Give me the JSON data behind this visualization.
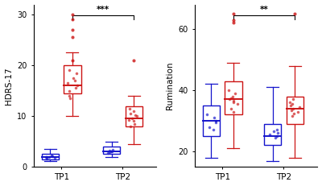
{
  "left_ylabel": "HDRS-17",
  "right_ylabel": "Rumination",
  "left_ylim": [
    0,
    32
  ],
  "right_ylim": [
    15,
    68
  ],
  "left_yticks": [
    0,
    10,
    20,
    30
  ],
  "right_yticks": [
    20,
    40,
    60
  ],
  "xtick_labels": [
    "TP1",
    "TP2"
  ],
  "blue_color": "#1414cc",
  "red_color": "#cc1414",
  "sig_left": "***",
  "sig_right": "**",
  "background_color": "#ffffff",
  "left_boxes": {
    "TP1_blue": {
      "median": 2.0,
      "q1": 1.5,
      "q3": 2.5,
      "whislo": 1.2,
      "whishi": 3.5
    },
    "TP1_red": {
      "median": 16.0,
      "q1": 14.5,
      "q3": 20.0,
      "whislo": 10.0,
      "whishi": 22.5
    },
    "TP2_blue": {
      "median": 3.0,
      "q1": 2.5,
      "q3": 4.0,
      "whislo": 2.0,
      "whishi": 5.0
    },
    "TP2_red": {
      "median": 9.5,
      "q1": 8.0,
      "q3": 12.0,
      "whislo": 4.5,
      "whishi": 14.0
    }
  },
  "right_boxes": {
    "TP1_blue": {
      "median": 30.0,
      "q1": 25.0,
      "q3": 35.0,
      "whislo": 18.0,
      "whishi": 42.0
    },
    "TP1_red": {
      "median": 37.0,
      "q1": 32.0,
      "q3": 43.0,
      "whislo": 21.0,
      "whishi": 49.0
    },
    "TP2_blue": {
      "median": 25.0,
      "q1": 22.0,
      "q3": 29.0,
      "whislo": 17.0,
      "whishi": 41.0
    },
    "TP2_red": {
      "median": 34.0,
      "q1": 29.0,
      "q3": 38.0,
      "whislo": 18.0,
      "whishi": 48.0
    }
  },
  "left_fliers": {
    "TP1_blue": [],
    "TP1_red": [
      30.0,
      29.0,
      27.0,
      25.5,
      21.0
    ],
    "TP2_blue": [],
    "TP2_red": [
      21.0
    ]
  },
  "right_fliers": {
    "TP1_blue": [],
    "TP1_red": [
      63.0,
      62.0,
      65.0
    ],
    "TP2_blue": [],
    "TP2_red": [
      65.0
    ]
  },
  "left_dots": {
    "TP1_blue": [
      2.0,
      1.8,
      2.1,
      2.3,
      1.6,
      2.0,
      1.9
    ],
    "TP1_red": [
      18.5,
      17.5,
      17.0,
      16.5,
      16.0,
      15.5,
      15.0,
      19.0,
      14.0,
      13.5
    ],
    "TP2_blue": [
      3.0,
      3.1,
      2.9,
      3.3,
      2.7,
      3.2
    ],
    "TP2_red": [
      9.5,
      9.0,
      10.0,
      10.5,
      11.0,
      8.5,
      9.2,
      10.2,
      8.0,
      11.5
    ]
  },
  "right_dots": {
    "TP1_blue": [
      30.0,
      29.5,
      31.0,
      28.0,
      32.0,
      27.0
    ],
    "TP1_red": [
      38.0,
      37.0,
      36.5,
      40.0,
      35.5,
      34.0,
      39.0,
      37.5,
      33.0,
      36.0
    ],
    "TP2_blue": [
      25.5,
      26.0,
      24.5,
      27.0,
      25.0,
      26.5
    ],
    "TP2_red": [
      34.5,
      35.0,
      33.5,
      36.0,
      34.0,
      32.5,
      35.5,
      33.0,
      37.0,
      31.5
    ]
  }
}
